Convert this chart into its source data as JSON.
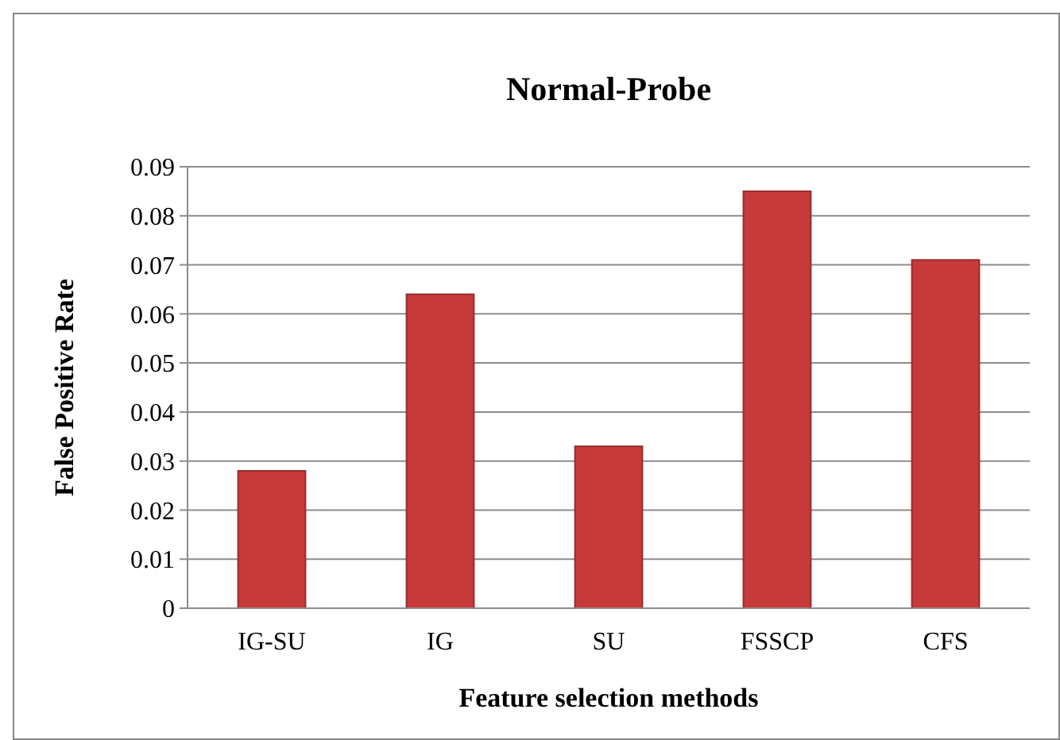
{
  "chart_data": {
    "type": "bar",
    "title": "Normal-Probe",
    "xlabel": "Feature selection methods",
    "ylabel": "False Positive Rate",
    "categories": [
      "IG-SU",
      "IG",
      "SU",
      "FSSCP",
      "CFS"
    ],
    "values": [
      0.028,
      0.064,
      0.033,
      0.085,
      0.071
    ],
    "color": "#c83a3a",
    "ylim": [
      0,
      0.09
    ],
    "yticks": [
      0,
      0.01,
      0.02,
      0.03,
      0.04,
      0.05,
      0.06,
      0.07,
      0.08,
      0.09
    ],
    "grid": "y"
  }
}
